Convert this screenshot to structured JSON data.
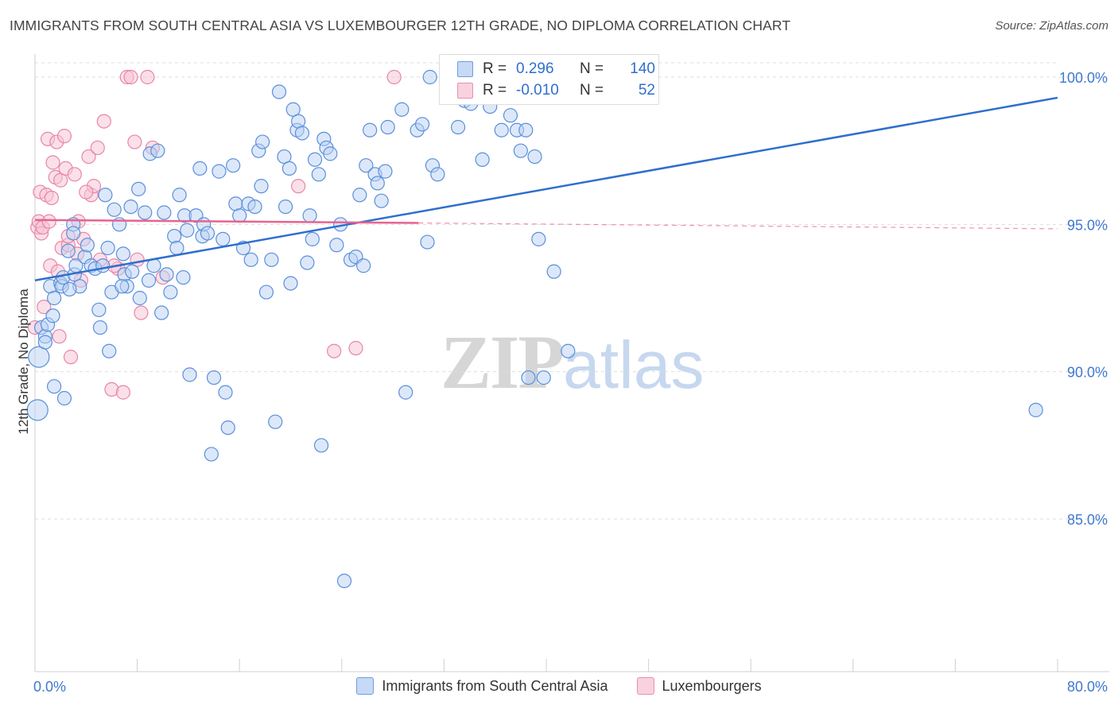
{
  "header": {
    "title": "IMMIGRANTS FROM SOUTH CENTRAL ASIA VS LUXEMBOURGER 12TH GRADE, NO DIPLOMA CORRELATION CHART",
    "source": "Source: ZipAtlas.com"
  },
  "watermark": {
    "zip": "ZIP",
    "atlas": "atlas"
  },
  "stats": {
    "blue": {
      "r_label": "R =",
      "r_value": "0.296",
      "n_label": "N =",
      "n_value": "140"
    },
    "pink": {
      "r_label": "R =",
      "r_value": "-0.010",
      "n_label": "N =",
      "n_value": "52"
    }
  },
  "colors": {
    "blue_fill": "#b9d2f3",
    "blue_stroke": "#5b8fdb",
    "blue_line": "#2f6fce",
    "pink_fill": "#f6c6d6",
    "pink_stroke": "#e985a8",
    "pink_line": "#e8638f",
    "grid": "#dddddd",
    "tick_label": "#3f78d0"
  },
  "chart_data": {
    "type": "scatter",
    "title": "IMMIGRANTS FROM SOUTH CENTRAL ASIA VS LUXEMBOURGER 12TH GRADE, NO DIPLOMA CORRELATION CHART",
    "xlabel": "",
    "ylabel": "12th Grade, No Diploma",
    "xlim": [
      0,
      80
    ],
    "ylim": [
      80.5,
      100.7
    ],
    "x_tick_labels": [
      {
        "value": 0,
        "label": "0.0%"
      },
      {
        "value": 80,
        "label": "80.0%"
      }
    ],
    "y_tick_labels": [
      {
        "value": 100,
        "label": "100.0%"
      },
      {
        "value": 95,
        "label": "95.0%"
      },
      {
        "value": 90,
        "label": "90.0%"
      },
      {
        "value": 85,
        "label": "85.0%"
      }
    ],
    "legend": [
      "Immigrants from South Central Asia",
      "Luxembourgers"
    ],
    "series": [
      {
        "name": "Immigrants from South Central Asia",
        "trend": {
          "x0": 0,
          "y0": 93.1,
          "x1": 80,
          "y1": 99.3
        },
        "points": [
          [
            0.2,
            88.7
          ],
          [
            0.3,
            90.5
          ],
          [
            0.5,
            91.5
          ],
          [
            0.8,
            91.2
          ],
          [
            1.0,
            91.6
          ],
          [
            1.2,
            92.9
          ],
          [
            1.4,
            91.9
          ],
          [
            1.5,
            92.5
          ],
          [
            1.5,
            89.5
          ],
          [
            2.0,
            93.0
          ],
          [
            2.1,
            92.9
          ],
          [
            2.2,
            93.2
          ],
          [
            2.3,
            89.1
          ],
          [
            2.6,
            94.1
          ],
          [
            3.0,
            95.0
          ],
          [
            3.0,
            94.7
          ],
          [
            3.1,
            93.3
          ],
          [
            3.2,
            93.6
          ],
          [
            3.5,
            92.9
          ],
          [
            3.9,
            93.9
          ],
          [
            4.1,
            94.3
          ],
          [
            4.4,
            93.6
          ],
          [
            4.7,
            93.5
          ],
          [
            5.0,
            92.1
          ],
          [
            5.1,
            91.5
          ],
          [
            5.3,
            93.6
          ],
          [
            5.7,
            94.2
          ],
          [
            5.8,
            90.7
          ],
          [
            6.0,
            92.7
          ],
          [
            6.2,
            95.5
          ],
          [
            6.6,
            95.0
          ],
          [
            6.9,
            94.0
          ],
          [
            7.0,
            93.3
          ],
          [
            7.2,
            92.9
          ],
          [
            7.5,
            95.6
          ],
          [
            7.6,
            93.4
          ],
          [
            8.1,
            96.2
          ],
          [
            8.2,
            92.5
          ],
          [
            8.6,
            95.4
          ],
          [
            8.9,
            93.1
          ],
          [
            9.0,
            97.4
          ],
          [
            9.3,
            93.6
          ],
          [
            9.6,
            97.5
          ],
          [
            9.9,
            92.0
          ],
          [
            10.1,
            95.4
          ],
          [
            10.3,
            93.3
          ],
          [
            10.6,
            92.7
          ],
          [
            10.9,
            94.6
          ],
          [
            11.1,
            94.2
          ],
          [
            11.3,
            96.0
          ],
          [
            11.7,
            95.3
          ],
          [
            11.9,
            94.8
          ],
          [
            12.1,
            89.9
          ],
          [
            12.6,
            95.3
          ],
          [
            12.9,
            96.9
          ],
          [
            13.1,
            94.6
          ],
          [
            13.2,
            95.0
          ],
          [
            13.8,
            87.2
          ],
          [
            14.0,
            89.8
          ],
          [
            14.4,
            96.8
          ],
          [
            14.7,
            94.5
          ],
          [
            14.9,
            89.3
          ],
          [
            15.1,
            88.1
          ],
          [
            15.5,
            97.0
          ],
          [
            15.7,
            95.7
          ],
          [
            16.0,
            95.3
          ],
          [
            16.3,
            94.2
          ],
          [
            16.7,
            95.7
          ],
          [
            16.9,
            93.8
          ],
          [
            17.2,
            95.6
          ],
          [
            17.5,
            97.5
          ],
          [
            17.7,
            96.3
          ],
          [
            17.8,
            97.8
          ],
          [
            18.1,
            92.7
          ],
          [
            18.5,
            93.8
          ],
          [
            18.8,
            88.3
          ],
          [
            19.1,
            99.5
          ],
          [
            19.5,
            97.3
          ],
          [
            19.6,
            95.6
          ],
          [
            19.9,
            96.9
          ],
          [
            20.0,
            93.0
          ],
          [
            20.2,
            98.9
          ],
          [
            20.5,
            98.2
          ],
          [
            20.6,
            98.5
          ],
          [
            20.9,
            98.1
          ],
          [
            21.3,
            93.7
          ],
          [
            21.5,
            95.3
          ],
          [
            21.7,
            94.5
          ],
          [
            21.9,
            97.2
          ],
          [
            22.2,
            96.7
          ],
          [
            22.4,
            87.5
          ],
          [
            22.6,
            97.9
          ],
          [
            22.8,
            97.6
          ],
          [
            23.1,
            97.4
          ],
          [
            23.6,
            94.3
          ],
          [
            23.9,
            95.0
          ],
          [
            24.2,
            82.9
          ],
          [
            24.7,
            93.8
          ],
          [
            25.1,
            93.9
          ],
          [
            25.4,
            96.0
          ],
          [
            25.7,
            93.6
          ],
          [
            25.9,
            97.0
          ],
          [
            26.2,
            98.2
          ],
          [
            26.6,
            96.7
          ],
          [
            26.8,
            96.4
          ],
          [
            27.1,
            95.8
          ],
          [
            27.4,
            96.8
          ],
          [
            27.6,
            98.3
          ],
          [
            28.7,
            98.9
          ],
          [
            29.0,
            89.3
          ],
          [
            29.9,
            98.2
          ],
          [
            30.3,
            98.4
          ],
          [
            30.7,
            94.4
          ],
          [
            30.9,
            100.0
          ],
          [
            31.1,
            97.0
          ],
          [
            31.5,
            96.7
          ],
          [
            32.4,
            100.0
          ],
          [
            33.1,
            98.3
          ],
          [
            33.6,
            99.2
          ],
          [
            34.1,
            99.1
          ],
          [
            35.0,
            97.2
          ],
          [
            35.6,
            99.0
          ],
          [
            36.5,
            98.2
          ],
          [
            37.2,
            98.7
          ],
          [
            37.7,
            98.2
          ],
          [
            38.0,
            97.5
          ],
          [
            38.4,
            98.2
          ],
          [
            38.6,
            89.8
          ],
          [
            39.1,
            97.3
          ],
          [
            39.4,
            94.5
          ],
          [
            39.8,
            89.8
          ],
          [
            40.6,
            93.4
          ],
          [
            41.7,
            90.7
          ],
          [
            78.3,
            88.7
          ],
          [
            13.5,
            94.7
          ],
          [
            5.5,
            96.0
          ],
          [
            0.8,
            91.0
          ],
          [
            2.7,
            92.8
          ],
          [
            6.8,
            92.9
          ],
          [
            11.6,
            93.2
          ]
        ]
      },
      {
        "name": "Luxembourgers",
        "trend": {
          "x0": 0,
          "y0": 95.15,
          "x1": 30,
          "y1": 95.05,
          "dash_to_x": 80,
          "dash_to_y": 94.85
        },
        "points": [
          [
            0.0,
            91.5
          ],
          [
            0.2,
            94.9
          ],
          [
            0.3,
            95.1
          ],
          [
            0.4,
            96.1
          ],
          [
            0.5,
            94.7
          ],
          [
            0.6,
            94.9
          ],
          [
            0.7,
            92.2
          ],
          [
            0.9,
            96.0
          ],
          [
            1.0,
            97.9
          ],
          [
            1.1,
            95.1
          ],
          [
            1.2,
            93.6
          ],
          [
            1.4,
            97.1
          ],
          [
            1.6,
            96.6
          ],
          [
            1.7,
            97.8
          ],
          [
            1.8,
            93.4
          ],
          [
            1.9,
            91.2
          ],
          [
            2.0,
            96.5
          ],
          [
            2.1,
            94.2
          ],
          [
            2.3,
            98.0
          ],
          [
            2.4,
            96.9
          ],
          [
            2.6,
            94.3
          ],
          [
            2.8,
            90.5
          ],
          [
            3.1,
            96.7
          ],
          [
            3.3,
            94.0
          ],
          [
            3.4,
            95.1
          ],
          [
            3.6,
            93.1
          ],
          [
            3.8,
            94.5
          ],
          [
            4.2,
            97.3
          ],
          [
            4.4,
            96.0
          ],
          [
            4.6,
            96.3
          ],
          [
            4.9,
            97.6
          ],
          [
            5.1,
            93.8
          ],
          [
            5.4,
            98.5
          ],
          [
            6.0,
            89.4
          ],
          [
            6.5,
            93.5
          ],
          [
            6.9,
            89.3
          ],
          [
            7.2,
            100.0
          ],
          [
            7.5,
            100.0
          ],
          [
            7.8,
            97.8
          ],
          [
            8.0,
            93.8
          ],
          [
            8.3,
            92.0
          ],
          [
            8.8,
            100.0
          ],
          [
            9.2,
            97.6
          ],
          [
            10.0,
            93.2
          ],
          [
            4.0,
            96.1
          ],
          [
            2.6,
            94.6
          ],
          [
            1.3,
            95.9
          ],
          [
            20.6,
            96.3
          ],
          [
            23.4,
            90.7
          ],
          [
            25.1,
            90.8
          ],
          [
            28.1,
            100.0
          ],
          [
            6.2,
            93.6
          ]
        ]
      }
    ]
  },
  "y_axis_label": "12th Grade, No Diploma"
}
